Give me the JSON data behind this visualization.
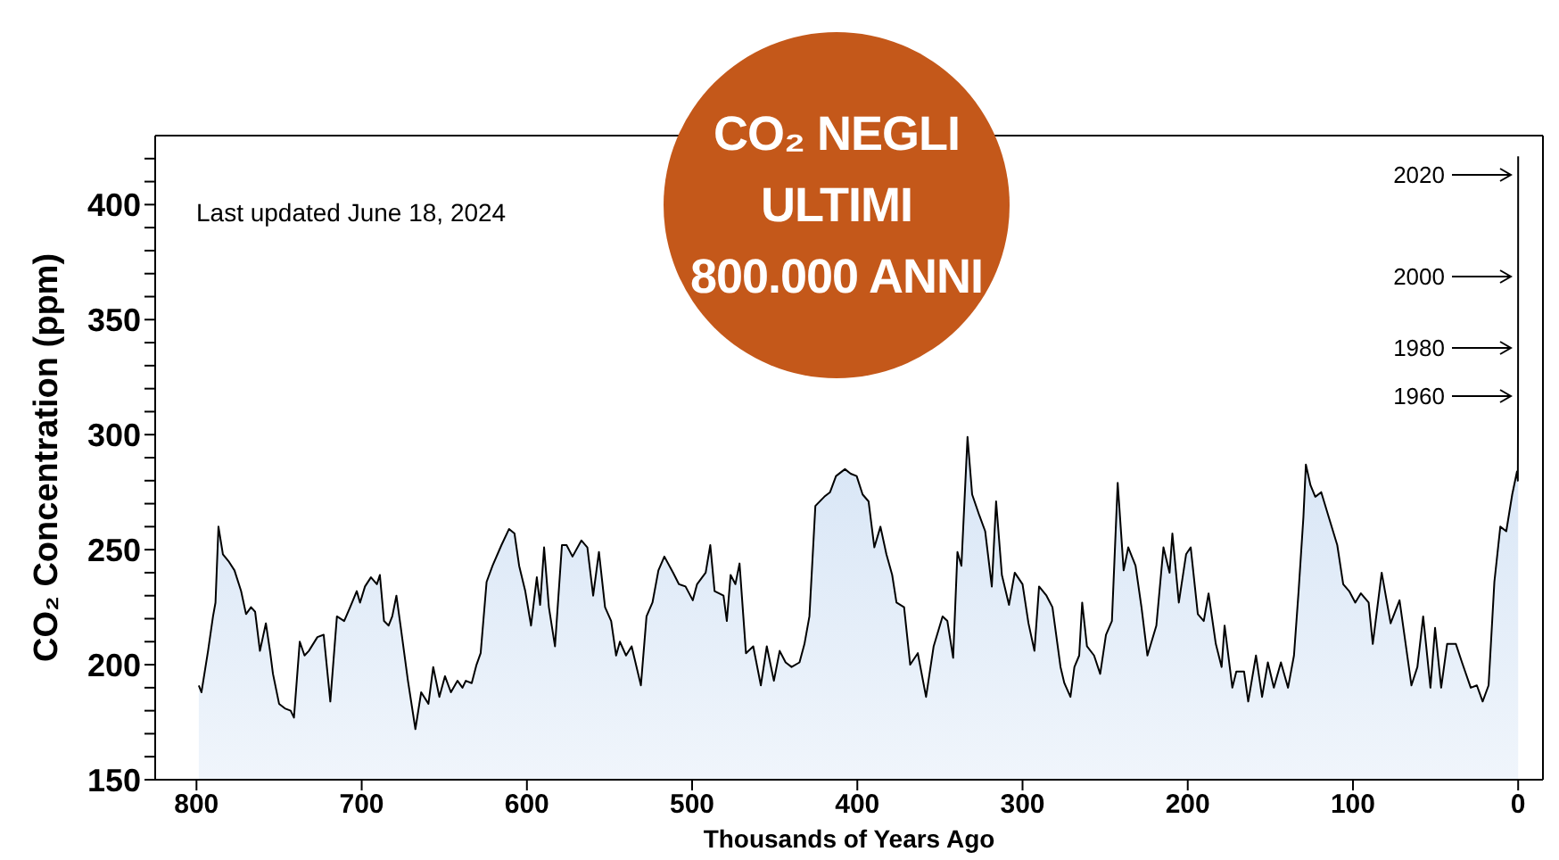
{
  "chart_data": {
    "type": "area",
    "title": "CO₂ NEGLI ULTIMI 800.000 ANNI",
    "xlabel": "Thousands of Years Ago",
    "ylabel": "CO₂ Concentration (ppm)",
    "annotations": [
      "Last updated June 18, 2024",
      "2020",
      "2000",
      "1980",
      "1960"
    ],
    "xlim": [
      825,
      -15
    ],
    "xticks": [
      800,
      700,
      600,
      500,
      400,
      300,
      200,
      100,
      0
    ],
    "ylim": [
      150,
      430
    ],
    "yticks": [
      150,
      {
        "value": 160,
        "label": null
      },
      {
        "value": 170,
        "label": null
      },
      {
        "value": 180,
        "label": null
      },
      {
        "value": 190,
        "label": null
      },
      200,
      {
        "value": 210,
        "label": null
      },
      {
        "value": 220,
        "label": null
      },
      {
        "value": 230,
        "label": null
      },
      {
        "value": 240,
        "label": null
      },
      250,
      {
        "value": 260,
        "label": null
      },
      {
        "value": 270,
        "label": null
      },
      {
        "value": 280,
        "label": null
      },
      {
        "value": 290,
        "label": null
      },
      300,
      {
        "value": 310,
        "label": null
      },
      {
        "value": 320,
        "label": null
      },
      {
        "value": 330,
        "label": null
      },
      {
        "value": 340,
        "label": null
      },
      350,
      {
        "value": 360,
        "label": null
      },
      {
        "value": 370,
        "label": null
      },
      {
        "value": 380,
        "label": null
      },
      {
        "value": 390,
        "label": null
      },
      400,
      {
        "value": 410,
        "label": null
      },
      {
        "value": 420,
        "label": null
      }
    ],
    "grid": false,
    "legend": false,
    "series": [
      {
        "color": "#c3d8f1",
        "x": [
          798.6,
          797,
          793,
          790,
          788.5,
          786.7,
          784,
          780.6,
          777,
          773,
          770,
          767,
          764.5,
          761.6,
          758,
          755.5,
          753.7,
          750,
          746.5,
          743,
          741,
          737.5,
          734.6,
          732,
          726.8,
          723,
          719,
          715,
          710.6,
          707,
          703,
          701,
          698,
          694.4,
          690.8,
          689,
          686.5,
          683.7,
          681.5,
          679,
          676.5,
          672,
          667.5,
          664,
          659.6,
          656.7,
          653,
          649.6,
          646,
          642,
          639,
          637,
          633.4,
          630.5,
          628,
          624.4,
          620.8,
          615.4,
          610.8,
          607.5,
          604.7,
          601,
          597.5,
          594,
          592,
          589.6,
          586.7,
          583,
          578.8,
          576,
          572.4,
          567,
          563.4,
          559.9,
          556.4,
          552.7,
          549,
          546,
          543.7,
          540,
          536.6,
          531,
          527.6,
          524,
          520.4,
          516.8,
          511.5,
          508,
          504,
          499.6,
          497,
          491.8,
          489,
          486.4,
          481,
          479,
          476.7,
          473.8,
          471.3,
          467.4,
          463,
          458.4,
          454.8,
          450.5,
          447,
          443.4,
          439.8,
          435,
          432,
          429,
          425.4,
          420,
          416.5,
          412.9,
          407.5,
          404,
          400.4,
          396.8,
          393.2,
          389.7,
          386,
          382.4,
          378.9,
          376.3,
          371.7,
          368,
          363.4,
          358.4,
          353.8,
          348.4,
          345.5,
          342,
          339.4,
          337,
          333.3,
          330.5,
          326.2,
          322.6,
          318.6,
          316,
          312.5,
          308.2,
          304.7,
          300,
          296.4,
          292.8,
          290,
          285.5,
          281.9,
          277,
          274.7,
          271,
          268.6,
          265.7,
          263.9,
          261,
          256.7,
          253,
          249.5,
          245.9,
          242.4,
          238.8,
          236,
          231.6,
          228,
          224.4,
          219,
          214.7,
          211,
          209.3,
          205.4,
          201,
          198.2,
          193.9,
          190.3,
          187.4,
          183,
          179.5,
          177.7,
          173,
          170.6,
          165.9,
          163.4,
          158.7,
          155,
          151.5,
          147.9,
          143.6,
          139.3,
          135.7,
          132.9,
          130,
          128.5,
          125.7,
          122.8,
          119.2,
          115,
          109.5,
          105.9,
          102.3,
          98.6,
          95.2,
          90.5,
          88,
          82.6,
          77.2,
          71.8,
          64.6,
          61,
          57.5,
          53.1,
          50.3,
          46.6,
          43,
          37.7,
          34,
          28.7,
          25,
          21.5,
          17.9,
          14.4,
          10.8,
          7.2,
          3.6,
          0.7,
          0.2,
          0.064,
          0.044,
          0.024,
          0.004,
          0
        ],
        "values": [
          191,
          188,
          206,
          221,
          227,
          260,
          248,
          245,
          241,
          232,
          222,
          225,
          223,
          206,
          218,
          206,
          196,
          183,
          181,
          180,
          177,
          210,
          204,
          206,
          212,
          213,
          184,
          221,
          219,
          225,
          232,
          227,
          234,
          238,
          235,
          239,
          219,
          217,
          221,
          230,
          217,
          193,
          172,
          188,
          183,
          199,
          186,
          195,
          188,
          193,
          190,
          193,
          192,
          200,
          205,
          236,
          243,
          252,
          259,
          257,
          243,
          232,
          217,
          238,
          226,
          251,
          225,
          208,
          252,
          252,
          247,
          254,
          251,
          230,
          249,
          225,
          219,
          204,
          210,
          204,
          208,
          191,
          221,
          227,
          241,
          247,
          240,
          235,
          234,
          228,
          235,
          240,
          252,
          232,
          230,
          219,
          239,
          235,
          244,
          205,
          208,
          191,
          208,
          193,
          206,
          201,
          199,
          201,
          209,
          221,
          269,
          273,
          275,
          282,
          285,
          283,
          282,
          274,
          271,
          251,
          260,
          248,
          239,
          227,
          225,
          200,
          205,
          186,
          208,
          221,
          219,
          203,
          249,
          243,
          299,
          274,
          265,
          258,
          234,
          271,
          239,
          226,
          240,
          235,
          218,
          206,
          234,
          230,
          225,
          199,
          192,
          186,
          199,
          204,
          227,
          208,
          204,
          196,
          213,
          219,
          279,
          241,
          251,
          243,
          225,
          204,
          217,
          251,
          240,
          257,
          227,
          248,
          251,
          222,
          219,
          231,
          209,
          199,
          217,
          190,
          197,
          197,
          184,
          204,
          186,
          201,
          190,
          201,
          190,
          204,
          232,
          264,
          287,
          278,
          273,
          275,
          265,
          252,
          235,
          232,
          227,
          231,
          227,
          209,
          240,
          218,
          228,
          191,
          199,
          221,
          190,
          216,
          190,
          209,
          209,
          201,
          190,
          191,
          184,
          191,
          236,
          260,
          258,
          274,
          284,
          280,
          316,
          338,
          369,
          413,
          421
        ]
      }
    ]
  }
}
